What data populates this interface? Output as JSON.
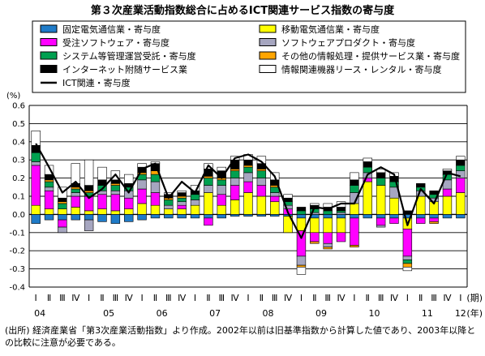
{
  "chart_data": {
    "type": "bar",
    "title": "第３次産業活動指数総合に占めるICT関連サービス指数の寄与度",
    "ylabel": "(%)",
    "ylim": [
      -0.4,
      0.6
    ],
    "yticks": [
      "0.6",
      "0.5",
      "0.4",
      "0.3",
      "0.2",
      "0.1",
      "0.0",
      "-0.1",
      "-0.2",
      "-0.3",
      "-0.4"
    ],
    "grid": true,
    "legend_position": "top",
    "x_unit_quarter": "(期)",
    "x_unit_year": "(年)",
    "quarter_labels": [
      "Ⅰ",
      "Ⅱ",
      "Ⅲ",
      "Ⅳ"
    ],
    "year_labels": [
      "04",
      "05",
      "06",
      "07",
      "08",
      "09",
      "10",
      "11",
      "12"
    ],
    "start_year": 2004,
    "n_periods": 33,
    "series": [
      {
        "name": "固定電気通信業・寄与度",
        "color": "#1f7bc8",
        "values": [
          -0.05,
          -0.03,
          -0.03,
          -0.03,
          -0.03,
          -0.04,
          -0.05,
          -0.04,
          -0.03,
          -0.02,
          -0.02,
          -0.02,
          -0.02,
          -0.02,
          -0.02,
          -0.01,
          -0.01,
          -0.01,
          -0.01,
          -0.01,
          -0.02,
          -0.02,
          -0.02,
          -0.02,
          -0.02,
          -0.02,
          -0.02,
          -0.02,
          -0.02,
          -0.02,
          -0.02,
          -0.02,
          -0.02
        ]
      },
      {
        "name": "移動電気通信業・寄与度",
        "color": "#ffff00",
        "values": [
          0.05,
          0.03,
          0.03,
          0.04,
          0.02,
          0.03,
          0.02,
          0.03,
          0.06,
          0.05,
          0.03,
          0.03,
          0.05,
          0.12,
          0.05,
          0.08,
          0.12,
          0.1,
          0.07,
          -0.09,
          -0.07,
          -0.08,
          -0.08,
          -0.08,
          0.06,
          0.18,
          0.16,
          0.09,
          -0.06,
          0.1,
          0.07,
          0.1,
          0.12
        ]
      },
      {
        "name": "受注ソフトウェア・寄与度",
        "color": "#ff00ff",
        "values": [
          0.22,
          0.1,
          -0.04,
          0.06,
          0.08,
          0.08,
          0.09,
          0.06,
          0.08,
          0.07,
          0.0,
          0.02,
          0.0,
          -0.04,
          0.06,
          0.08,
          0.06,
          0.06,
          0.03,
          0.03,
          -0.14,
          -0.05,
          -0.06,
          -0.05,
          -0.15,
          0.02,
          -0.04,
          -0.03,
          -0.15,
          -0.03,
          -0.02,
          0.04,
          0.08
        ]
      },
      {
        "name": "ソフトウェアプロダクト・寄与度",
        "color": "#a6a6c0",
        "values": [
          0.02,
          0.02,
          -0.03,
          0.02,
          -0.06,
          0.02,
          0.02,
          0.04,
          0.05,
          0.06,
          0.02,
          0.02,
          0.03,
          0.04,
          0.05,
          0.04,
          0.05,
          0.04,
          0.02,
          0.02,
          -0.05,
          0.01,
          -0.02,
          0.01,
          0.06,
          0.03,
          -0.01,
          0.06,
          -0.02,
          0.03,
          0.02,
          0.05,
          0.04
        ]
      },
      {
        "name": "システム等管理運営受託・寄与度",
        "color": "#00a050",
        "values": [
          0.05,
          0.03,
          0.03,
          0.02,
          0.02,
          0.03,
          0.03,
          0.02,
          0.03,
          0.04,
          0.03,
          0.02,
          0.03,
          0.04,
          0.03,
          0.04,
          0.03,
          0.04,
          0.03,
          0.02,
          0.02,
          0.02,
          0.02,
          0.01,
          0.04,
          0.03,
          0.04,
          0.03,
          -0.02,
          0.02,
          0.02,
          0.03,
          0.03
        ]
      },
      {
        "name": "その他の情報処理・提供サービス業・寄与度",
        "color": "#ffa500",
        "values": [
          0.0,
          0.01,
          0.01,
          0.01,
          0.01,
          0.0,
          0.01,
          0.0,
          0.01,
          0.02,
          0.01,
          0.01,
          0.0,
          0.01,
          0.01,
          0.01,
          0.01,
          0.01,
          0.01,
          0.0,
          -0.01,
          -0.01,
          -0.01,
          0.0,
          -0.01,
          0.0,
          0.0,
          0.0,
          -0.02,
          0.0,
          -0.01,
          0.0,
          0.0
        ]
      },
      {
        "name": "インターネット附随サービス業",
        "color": "#000000",
        "values": [
          0.04,
          0.03,
          0.02,
          0.02,
          0.03,
          0.03,
          0.02,
          0.02,
          0.03,
          0.04,
          0.02,
          0.02,
          0.02,
          0.04,
          0.04,
          0.05,
          0.03,
          0.03,
          0.03,
          0.02,
          0.02,
          0.02,
          0.02,
          0.02,
          0.03,
          0.03,
          0.03,
          0.03,
          0.02,
          0.02,
          0.02,
          0.02,
          0.03
        ]
      },
      {
        "name": "情報関連機器リース・レンタル・寄与度",
        "color": "#ffffff",
        "values": [
          0.08,
          0.05,
          0.06,
          0.11,
          0.14,
          0.07,
          0.05,
          0.05,
          0.02,
          0.01,
          0.01,
          0.01,
          0.03,
          0.03,
          0.02,
          0.02,
          0.03,
          0.04,
          0.04,
          0.02,
          -0.04,
          0.01,
          0.02,
          0.03,
          0.04,
          0.02,
          0.02,
          0.02,
          -0.02,
          0.0,
          0.0,
          0.01,
          0.02
        ]
      }
    ],
    "line": {
      "name": "ICT関連・寄与度",
      "color": "#000000",
      "values": [
        0.39,
        0.26,
        0.12,
        0.18,
        0.09,
        0.14,
        0.22,
        0.12,
        0.25,
        0.28,
        0.09,
        0.18,
        0.12,
        0.27,
        0.2,
        0.31,
        0.33,
        0.29,
        0.21,
        0.01,
        -0.13,
        0.04,
        0.03,
        0.06,
        0.06,
        0.22,
        0.26,
        0.22,
        -0.06,
        0.14,
        0.06,
        0.23,
        0.21
      ]
    }
  },
  "source_note": "(出所) 経済産業省「第3次産業活動指数」より作成。2002年以前は旧基準指数から計算した値であり、2003年以降との比較に注意が必要である。"
}
